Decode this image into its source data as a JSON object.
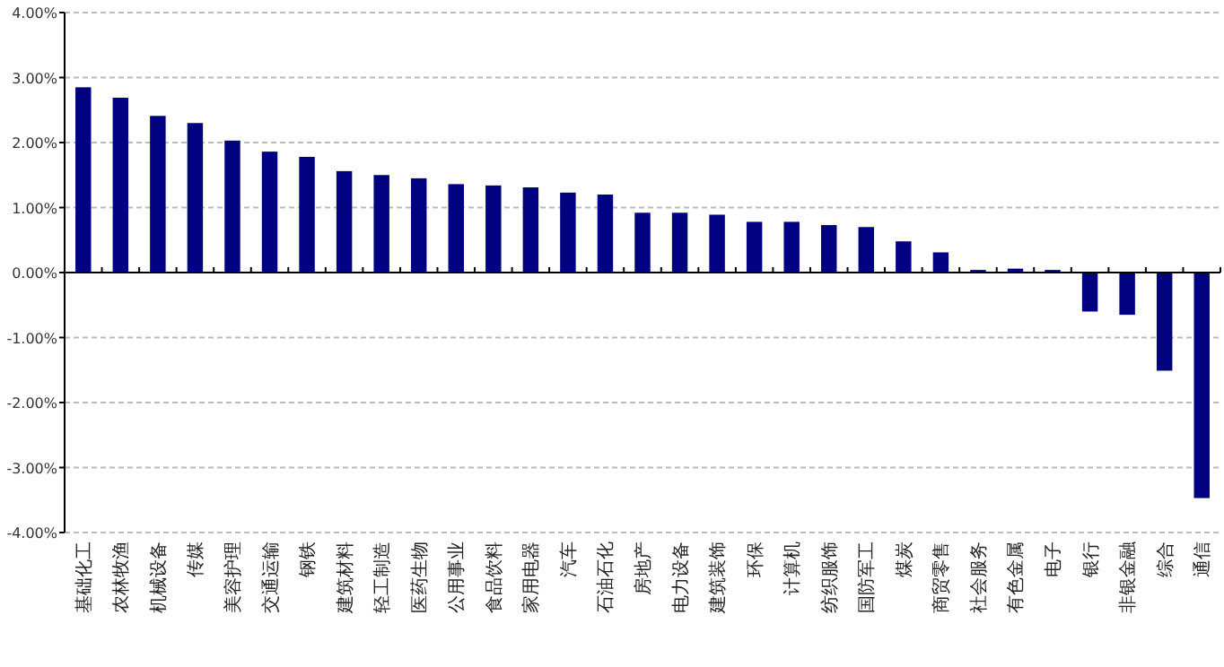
{
  "chart_data": {
    "type": "bar",
    "categories": [
      "基础化工",
      "农林牧渔",
      "机械设备",
      "传媒",
      "美容护理",
      "交通运输",
      "钢铁",
      "建筑材料",
      "轻工制造",
      "医药生物",
      "公用事业",
      "食品饮料",
      "家用电器",
      "汽车",
      "石油石化",
      "房地产",
      "电力设备",
      "建筑装饰",
      "环保",
      "计算机",
      "纺织服饰",
      "国防军工",
      "煤炭",
      "商贸零售",
      "社会服务",
      "有色金属",
      "电子",
      "银行",
      "非银金融",
      "综合",
      "通信"
    ],
    "values": [
      2.85,
      2.69,
      2.41,
      2.3,
      2.03,
      1.86,
      1.78,
      1.56,
      1.5,
      1.45,
      1.36,
      1.34,
      1.31,
      1.23,
      1.2,
      0.92,
      0.92,
      0.89,
      0.78,
      0.78,
      0.73,
      0.7,
      0.48,
      0.31,
      0.04,
      0.06,
      0.04,
      -0.6,
      -0.65,
      -1.51,
      -3.47
    ],
    "color": "#000080",
    "ylim": [
      -4,
      4
    ],
    "yticks": [
      {
        "value": -4,
        "label": "-4.00%"
      },
      {
        "value": -3,
        "label": "-3.00%"
      },
      {
        "value": -2,
        "label": "-2.00%"
      },
      {
        "value": -1,
        "label": "-1.00%"
      },
      {
        "value": 0,
        "label": "0.00%"
      },
      {
        "value": 1,
        "label": "1.00%"
      },
      {
        "value": 2,
        "label": "2.00%"
      },
      {
        "value": 3,
        "label": "3.00%"
      },
      {
        "value": 4,
        "label": "4.00%"
      }
    ],
    "grid": "y"
  }
}
